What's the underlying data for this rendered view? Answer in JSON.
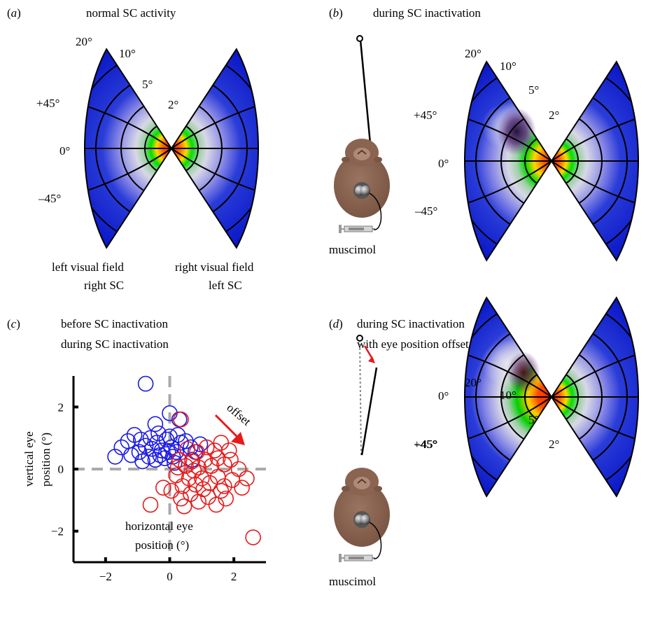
{
  "panels": {
    "a": {
      "letter": "a",
      "title": "normal SC activity"
    },
    "b": {
      "letter": "b",
      "title": "during SC inactivation"
    },
    "c": {
      "letter": "c"
    },
    "d": {
      "letter": "d",
      "title_line1": "during SC inactivation",
      "title_line2": "with eye position offset"
    }
  },
  "map_labels": {
    "ecc20": "20°",
    "ecc10": "10°",
    "ecc5": "5°",
    "ecc2": "2°",
    "plus45": "+45°",
    "zero": "0°",
    "minus45": "–45°"
  },
  "field_labels": {
    "left_field": "left visual field",
    "right_sc": "right SC",
    "right_field": "right visual field",
    "left_sc": "left SC"
  },
  "muscimol_label": "muscimol",
  "offset_label": "offset",
  "colors": {
    "before": "#1a1ae6",
    "during": "#e61a1a",
    "map_low": "#0a1fcf",
    "map_high": "#ff2a00"
  },
  "chart_data": {
    "type": "scatter",
    "xlabel_line1": "horizontal eye",
    "xlabel_line2": "position (°)",
    "ylabel_line1": "vertical eye",
    "ylabel_line2": "position (°)",
    "xlim": [
      -3,
      3
    ],
    "ylim": [
      -3,
      3
    ],
    "xticks": [
      -2,
      0,
      2
    ],
    "yticks": [
      -2,
      0,
      2
    ],
    "xtick_labels": [
      "−2",
      "0",
      "2"
    ],
    "ytick_labels": [
      "−2",
      "0",
      "2"
    ],
    "legend_placement": "top",
    "series": [
      {
        "name": "before SC inactivation",
        "color": "#1a1ae6",
        "points": [
          [
            -0.75,
            2.75
          ],
          [
            -0.45,
            1.45
          ],
          [
            0.0,
            1.8
          ],
          [
            0.3,
            1.6
          ],
          [
            -1.7,
            0.4
          ],
          [
            -1.5,
            0.7
          ],
          [
            -1.3,
            0.9
          ],
          [
            -1.1,
            1.1
          ],
          [
            -0.9,
            0.95
          ],
          [
            -0.75,
            0.75
          ],
          [
            -0.55,
            0.65
          ],
          [
            -0.4,
            0.85
          ],
          [
            -0.25,
            0.6
          ],
          [
            -0.1,
            0.95
          ],
          [
            0.05,
            0.7
          ],
          [
            0.2,
            0.55
          ],
          [
            0.35,
            0.85
          ],
          [
            -0.65,
            0.4
          ],
          [
            -0.45,
            0.3
          ],
          [
            -0.3,
            0.45
          ],
          [
            -0.15,
            0.35
          ],
          [
            -0.05,
            0.55
          ],
          [
            0.1,
            0.4
          ],
          [
            0.5,
            0.9
          ],
          [
            0.65,
            0.7
          ],
          [
            0.8,
            0.55
          ],
          [
            0.95,
            0.8
          ],
          [
            -0.95,
            0.55
          ],
          [
            -1.2,
            0.45
          ],
          [
            -0.6,
            1.0
          ],
          [
            -0.35,
            1.15
          ],
          [
            0.0,
            1.05
          ],
          [
            0.25,
            1.1
          ],
          [
            -0.85,
            0.25
          ],
          [
            0.15,
            0.2
          ],
          [
            0.7,
            0.3
          ]
        ]
      },
      {
        "name": "during SC inactivation",
        "color": "#e61a1a",
        "points": [
          [
            0.35,
            1.6
          ],
          [
            2.6,
            -2.2
          ],
          [
            -0.6,
            -1.15
          ],
          [
            1.6,
            0.85
          ],
          [
            0.3,
            0.3
          ],
          [
            0.5,
            0.1
          ],
          [
            0.7,
            0.25
          ],
          [
            0.9,
            0.05
          ],
          [
            1.1,
            0.3
          ],
          [
            1.3,
            0.1
          ],
          [
            1.5,
            0.35
          ],
          [
            1.7,
            0.15
          ],
          [
            1.9,
            0.3
          ],
          [
            2.15,
            0.0
          ],
          [
            2.4,
            -0.3
          ],
          [
            2.25,
            -0.6
          ],
          [
            1.95,
            -0.35
          ],
          [
            1.7,
            -0.55
          ],
          [
            1.5,
            -0.25
          ],
          [
            1.25,
            -0.45
          ],
          [
            1.0,
            -0.3
          ],
          [
            0.8,
            -0.5
          ],
          [
            0.6,
            -0.3
          ],
          [
            0.4,
            -0.55
          ],
          [
            0.2,
            -0.2
          ],
          [
            0.05,
            -0.7
          ],
          [
            0.35,
            -0.95
          ],
          [
            0.65,
            -0.8
          ],
          [
            0.9,
            -1.05
          ],
          [
            1.2,
            -0.9
          ],
          [
            1.45,
            -1.15
          ],
          [
            1.75,
            -0.95
          ],
          [
            0.55,
            0.65
          ],
          [
            0.85,
            0.55
          ],
          [
            1.15,
            0.7
          ],
          [
            1.4,
            0.6
          ],
          [
            1.85,
            0.6
          ],
          [
            0.45,
            -1.2
          ],
          [
            0.75,
            -0.05
          ],
          [
            1.05,
            -0.65
          ],
          [
            0.25,
            0.05
          ],
          [
            1.6,
            -0.7
          ],
          [
            -0.2,
            -0.6
          ]
        ]
      }
    ]
  }
}
